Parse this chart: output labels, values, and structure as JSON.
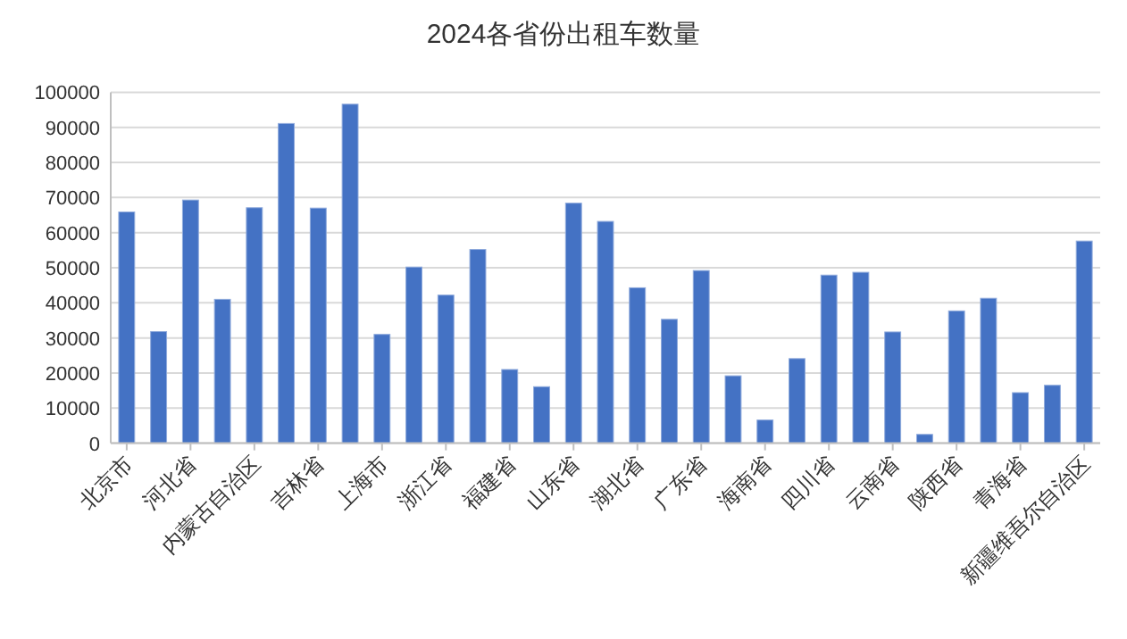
{
  "chart_data": {
    "type": "bar",
    "title": "2024各省份出租车数量",
    "categories": [
      "北京市",
      null,
      "河北省",
      null,
      "内蒙古自治区",
      null,
      "吉林省",
      null,
      "上海市",
      null,
      "浙江省",
      null,
      "福建省",
      null,
      "山东省",
      null,
      "湖北省",
      null,
      "广东省",
      null,
      "海南省",
      null,
      "四川省",
      null,
      "云南省",
      null,
      "陕西省",
      null,
      "青海省",
      null,
      "新疆维吾尔自治区"
    ],
    "values": [
      65900,
      31800,
      69300,
      41000,
      67100,
      91100,
      67000,
      96600,
      31000,
      50200,
      42200,
      55200,
      21000,
      16100,
      68400,
      63200,
      44300,
      35300,
      49200,
      19200,
      6600,
      24100,
      47900,
      48700,
      31700,
      2500,
      37700,
      41300,
      14400,
      16500,
      57600
    ],
    "color": "#4472c4",
    "ylim": [
      0,
      100000
    ],
    "yticks": [
      0,
      10000,
      20000,
      30000,
      40000,
      50000,
      60000,
      70000,
      80000,
      90000,
      100000
    ],
    "grid": "y"
  }
}
